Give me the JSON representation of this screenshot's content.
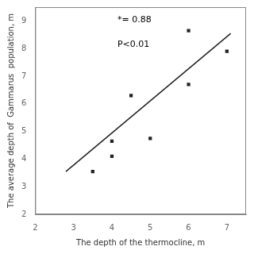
{
  "chart_data": {
    "type": "scatter",
    "xlabel": "The depth of the thermocline, m",
    "ylabel": "The average depth of  Gammarus  population, m",
    "annotations": [
      "*= 0.88",
      "P<0.01"
    ],
    "series": [
      {
        "type": "scatter",
        "marker": "square",
        "color": "#222222",
        "x": [
          3.5,
          4.0,
          4.0,
          4.5,
          5.0,
          6.0,
          6.0,
          7.0
        ],
        "values": [
          3.55,
          4.65,
          4.1,
          6.3,
          4.75,
          8.65,
          6.7,
          7.9
        ]
      },
      {
        "type": "line",
        "line_style": "solid",
        "color": "#222222",
        "x": [
          2.8,
          7.1
        ],
        "values": [
          3.55,
          8.55
        ]
      }
    ],
    "xlim": [
      2,
      7.5
    ],
    "ylim": [
      2,
      9.5
    ],
    "xticks": [
      2,
      3,
      4,
      5,
      6,
      7
    ],
    "yticks": [
      2,
      3,
      4,
      5,
      6,
      7,
      8,
      9
    ],
    "grid": false
  }
}
